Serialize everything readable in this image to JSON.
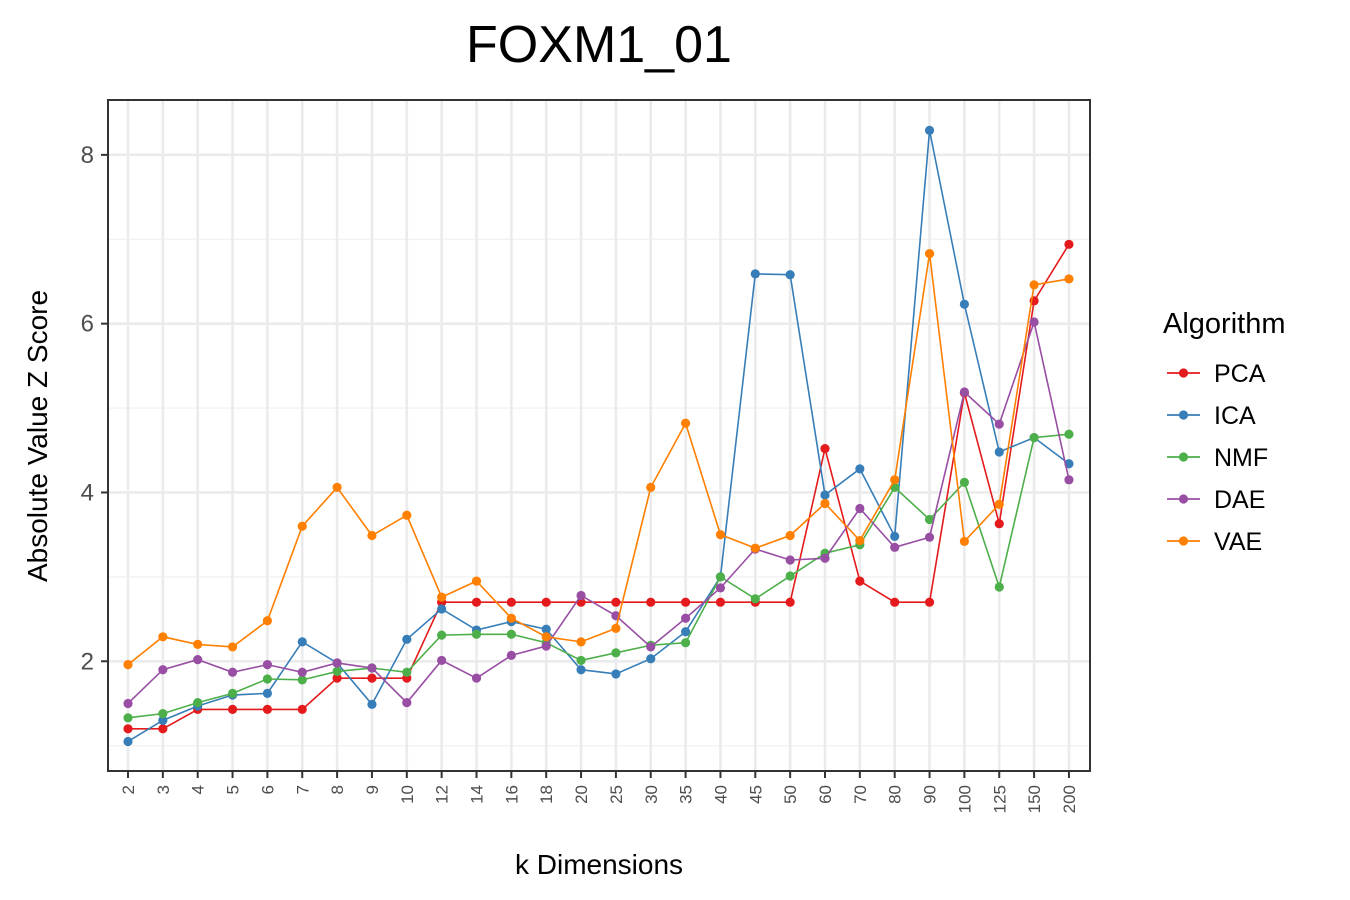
{
  "chart_data": {
    "type": "line",
    "title": "FOXM1_01",
    "xlabel": "k Dimensions",
    "ylabel": "Absolute Value Z Score",
    "categories": [
      "2",
      "3",
      "4",
      "5",
      "6",
      "7",
      "8",
      "9",
      "10",
      "12",
      "14",
      "16",
      "18",
      "20",
      "25",
      "30",
      "35",
      "40",
      "45",
      "50",
      "60",
      "70",
      "80",
      "90",
      "100",
      "125",
      "150",
      "200"
    ],
    "yticks": [
      2,
      4,
      6,
      8
    ],
    "ylim": [
      0.7,
      8.65
    ],
    "grid": true,
    "legend": {
      "title": "Algorithm",
      "position": "right"
    },
    "series": [
      {
        "name": "PCA",
        "color": "#e41a1c",
        "values": [
          1.2,
          1.2,
          1.43,
          1.43,
          1.43,
          1.43,
          1.8,
          1.8,
          1.8,
          2.7,
          2.7,
          2.7,
          2.7,
          2.7,
          2.7,
          2.7,
          2.7,
          2.7,
          2.7,
          2.7,
          4.52,
          2.95,
          2.7,
          2.7,
          5.18,
          3.63,
          6.27,
          6.94
        ]
      },
      {
        "name": "ICA",
        "color": "#377eb8",
        "values": [
          1.05,
          1.3,
          1.47,
          1.6,
          1.62,
          2.23,
          1.98,
          1.49,
          2.26,
          2.62,
          2.37,
          2.47,
          2.38,
          1.9,
          1.85,
          2.03,
          2.35,
          3.0,
          6.59,
          6.58,
          3.97,
          4.28,
          3.48,
          8.29,
          6.23,
          4.48,
          4.65,
          4.34
        ]
      },
      {
        "name": "NMF",
        "color": "#4daf4a",
        "values": [
          1.33,
          1.38,
          1.51,
          1.62,
          1.79,
          1.78,
          1.88,
          1.92,
          1.87,
          2.31,
          2.32,
          2.32,
          2.22,
          2.01,
          2.1,
          2.19,
          2.22,
          3.0,
          2.74,
          3.01,
          3.28,
          3.38,
          4.06,
          3.68,
          4.12,
          2.88,
          4.65,
          4.69
        ]
      },
      {
        "name": "DAE",
        "color": "#984ea3",
        "values": [
          1.5,
          1.9,
          2.02,
          1.87,
          1.96,
          1.87,
          1.98,
          1.92,
          1.51,
          2.01,
          1.8,
          2.07,
          2.18,
          2.78,
          2.54,
          2.17,
          2.51,
          2.87,
          3.33,
          3.2,
          3.22,
          3.81,
          3.35,
          3.47,
          5.19,
          4.81,
          6.02,
          4.15
        ]
      },
      {
        "name": "VAE",
        "color": "#ff7f00",
        "values": [
          1.96,
          2.29,
          2.2,
          2.17,
          2.48,
          3.6,
          4.06,
          3.49,
          3.73,
          2.76,
          2.95,
          2.51,
          2.29,
          2.23,
          2.39,
          4.06,
          4.82,
          3.5,
          3.34,
          3.49,
          3.87,
          3.43,
          4.15,
          6.83,
          3.42,
          3.86,
          6.46,
          6.53
        ]
      }
    ]
  }
}
